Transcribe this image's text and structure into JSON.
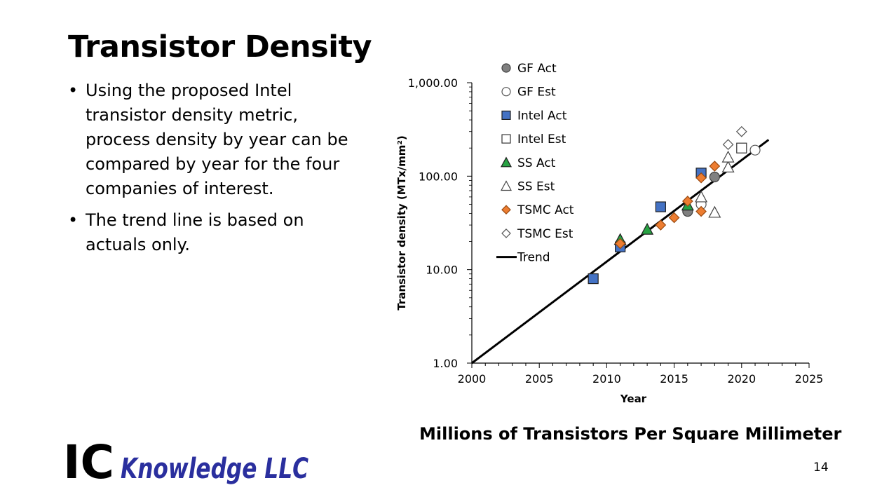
{
  "slide": {
    "title": "Transistor Density",
    "bullets": [
      "Using the proposed Intel transistor density metric, process density by year can be compared by year for the four companies of interest.",
      "The trend line is based on actuals only."
    ],
    "caption": "Millions of Transistors Per Square Millimeter",
    "page_number": "14",
    "logo": {
      "text_ic": "IC",
      "text_rest": "Knowledge LLC",
      "color_ic": "#000000",
      "color_rest": "#2a2f9e"
    }
  },
  "chart_data": {
    "type": "scatter",
    "title": "",
    "xlabel": "Year",
    "ylabel": "Transistor density (MTx/mm²)",
    "x_scale": "linear",
    "y_scale": "log",
    "xlim": [
      2000,
      2025
    ],
    "ylim": [
      1,
      1000
    ],
    "x_ticks": [
      "2000",
      "2005",
      "2010",
      "2015",
      "2020",
      "2025"
    ],
    "y_ticks": [
      {
        "value": 1,
        "label": "1.00"
      },
      {
        "value": 10,
        "label": "10.00"
      },
      {
        "value": 100,
        "label": "100.00"
      },
      {
        "value": 1000,
        "label": "1,000.00"
      }
    ],
    "grid": false,
    "legend_position": "top-left",
    "series": [
      {
        "name": "GF Act",
        "marker": "circle",
        "fill": "#808080",
        "stroke": "#404040",
        "points": [
          [
            2016,
            42
          ],
          [
            2018,
            98
          ]
        ]
      },
      {
        "name": "GF Est",
        "marker": "circle",
        "fill": "#ffffff",
        "stroke": "#555555",
        "points": [
          [
            2017,
            50
          ],
          [
            2021,
            190
          ]
        ]
      },
      {
        "name": "Intel Act",
        "marker": "square",
        "fill": "#4472c4",
        "stroke": "#1f1f1f",
        "points": [
          [
            2009,
            8
          ],
          [
            2011,
            17.5
          ],
          [
            2014,
            47
          ],
          [
            2017,
            108
          ]
        ]
      },
      {
        "name": "Intel Est",
        "marker": "square",
        "fill": "#ffffff",
        "stroke": "#333333",
        "points": [
          [
            2020,
            200
          ]
        ]
      },
      {
        "name": "SS Act",
        "marker": "triangle",
        "fill": "#27a243",
        "stroke": "#1f1f1f",
        "points": [
          [
            2011,
            21
          ],
          [
            2013,
            27
          ],
          [
            2016,
            49
          ]
        ]
      },
      {
        "name": "SS Est",
        "marker": "triangle",
        "fill": "#ffffff",
        "stroke": "#444444",
        "points": [
          [
            2017,
            60
          ],
          [
            2018,
            41
          ],
          [
            2019,
            125
          ],
          [
            2019,
            160
          ]
        ]
      },
      {
        "name": "TSMC Act",
        "marker": "diamond",
        "fill": "#ed7d31",
        "stroke": "#9a4a10",
        "points": [
          [
            2011,
            19
          ],
          [
            2014,
            30
          ],
          [
            2015,
            36
          ],
          [
            2016,
            54
          ],
          [
            2017,
            42
          ],
          [
            2017,
            96
          ],
          [
            2018,
            128
          ]
        ]
      },
      {
        "name": "TSMC Est",
        "marker": "diamond",
        "fill": "#ffffff",
        "stroke": "#555555",
        "points": [
          [
            2019,
            218
          ],
          [
            2020,
            300
          ]
        ]
      },
      {
        "name": "Trend",
        "marker": "line",
        "stroke": "#000000",
        "points": [
          [
            2000,
            1
          ],
          [
            2022,
            245
          ]
        ]
      }
    ]
  }
}
